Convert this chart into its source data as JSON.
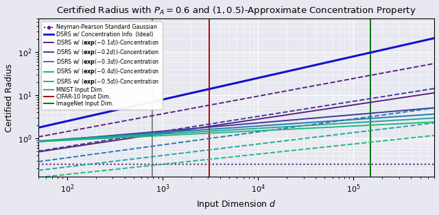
{
  "title": "Certified Radius with $P_A = 0.6$ and $(1, 0.5)$-Approximate Concentration Property",
  "xlabel": "Input Dimension $d$",
  "ylabel": "Certified Radius",
  "d_min": 50,
  "d_max": 700000,
  "PA": 0.6,
  "delta": 0.5,
  "sigma": 1.0,
  "alphas": [
    0.1,
    0.2,
    0.3,
    0.4,
    0.5
  ],
  "mnist_dim": 784,
  "cifar_dim": 3072,
  "imagenet_dim": 150528,
  "np_color": "#5c1f8a",
  "ideal_color": "#1111cc",
  "alpha_colors": [
    "#5c2080",
    "#3a3a9a",
    "#2878b0",
    "#1fa898",
    "#22b87a"
  ],
  "mnist_color": "#888888",
  "cifar_color": "#aa1111",
  "imagenet_color": "#117711",
  "background_color": "#e8e8f0",
  "ylim_min": 0.13,
  "ylim_max": 600,
  "legend_labels": [
    "Neyman-Pearson Standard Gaussian",
    "DSRS w/ Concentration Info. (Ideal)",
    "DSRS w/ ($\\mathbf{exp}(-0.1d)$)-Concentration",
    "DSRS w/ ($\\mathbf{exp}(-0.2d)$)-Concentration",
    "DSRS w/ ($\\mathbf{exp}(-0.3d)$)-Concentration",
    "DSRS w/ ($\\mathbf{exp}(-0.4d)$)-Concentration",
    "DSRS w/ ($\\mathbf{exp}(-0.5d)$)-Concentration",
    "MNIST Input Dim.",
    "CIFAR-10 Input Dim.",
    "ImageNet Input Dim."
  ]
}
